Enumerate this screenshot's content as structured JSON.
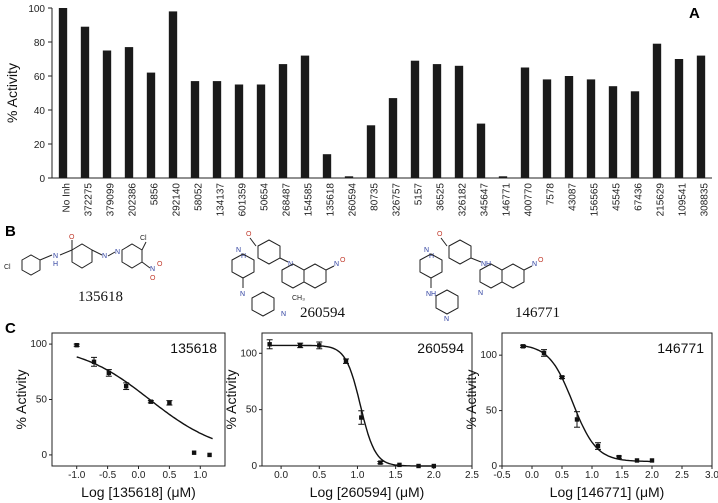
{
  "panel_letters": {
    "a": "A",
    "b": "B",
    "c": "C"
  },
  "chart_data": [
    {
      "type": "bar",
      "ylabel": "% Activity",
      "ylim": [
        0,
        100
      ],
      "yticks": [
        0,
        20,
        40,
        60,
        80,
        100
      ],
      "bar_color": "#1a1a1a",
      "categories": [
        "No Inh",
        "372275",
        "379099",
        "202386",
        "5856",
        "292140",
        "58052",
        "134137",
        "601359",
        "50654",
        "268487",
        "154585",
        "135618",
        "260594",
        "80735",
        "326757",
        "5157",
        "36525",
        "326182",
        "345647",
        "146771",
        "400770",
        "7578",
        "43087",
        "156565",
        "45545",
        "67436",
        "215629",
        "109541",
        "308835"
      ],
      "values": [
        100,
        89,
        75,
        77,
        62,
        98,
        57,
        57,
        55,
        55,
        67,
        72,
        14,
        1,
        31,
        47,
        69,
        67,
        66,
        32,
        1,
        65,
        58,
        60,
        58,
        54,
        51,
        79,
        70,
        72
      ]
    },
    {
      "type": "scatter",
      "compound": "135618",
      "xlabel": "Log [135618] (μM)",
      "ylabel": "% Activity",
      "xlim": [
        -1.4,
        1.4
      ],
      "ylim": [
        -10,
        110
      ],
      "xticks": [
        -1,
        -0.5,
        0,
        0.5,
        1
      ],
      "yticks": [
        0,
        50,
        100
      ],
      "points": [
        {
          "x": -1.0,
          "y": 99,
          "err": 1
        },
        {
          "x": -0.72,
          "y": 84,
          "err": 4
        },
        {
          "x": -0.48,
          "y": 74,
          "err": 3
        },
        {
          "x": -0.2,
          "y": 62,
          "err": 3
        },
        {
          "x": 0.2,
          "y": 48,
          "err": 1
        },
        {
          "x": 0.5,
          "y": 47,
          "err": 2
        },
        {
          "x": 0.9,
          "y": 2,
          "err": 0
        },
        {
          "x": 1.15,
          "y": 0,
          "err": 0
        }
      ],
      "fit": {
        "top": 100,
        "bottom": 0,
        "logIC50": 0.18,
        "hill": 0.75,
        "x_from": -1.0,
        "x_to": 1.2
      }
    },
    {
      "type": "scatter",
      "compound": "260594",
      "xlabel": "Log [260594] (μM)",
      "ylabel": "% Activity",
      "xlim": [
        -0.25,
        2.5
      ],
      "ylim": [
        0,
        118
      ],
      "xticks": [
        0.0,
        0.5,
        1.0,
        1.5,
        2.0,
        2.5
      ],
      "yticks": [
        0,
        50,
        100
      ],
      "points": [
        {
          "x": -0.15,
          "y": 108,
          "err": 4
        },
        {
          "x": 0.25,
          "y": 107,
          "err": 2
        },
        {
          "x": 0.5,
          "y": 107,
          "err": 3
        },
        {
          "x": 0.85,
          "y": 93,
          "err": 2
        },
        {
          "x": 1.05,
          "y": 43,
          "err": 6
        },
        {
          "x": 1.3,
          "y": 3,
          "err": 1
        },
        {
          "x": 1.55,
          "y": 1,
          "err": 0
        },
        {
          "x": 1.8,
          "y": 0,
          "err": 0
        },
        {
          "x": 2.0,
          "y": 0,
          "err": 0
        }
      ],
      "fit": {
        "top": 107,
        "bottom": 0,
        "logIC50": 1.04,
        "hill": 4.5,
        "x_from": -0.15,
        "x_to": 2.0
      }
    },
    {
      "type": "scatter",
      "compound": "146771",
      "xlabel": "Log [146771] (μM)",
      "ylabel": "% Activity",
      "xlim": [
        -0.5,
        3.0
      ],
      "ylim": [
        0,
        120
      ],
      "xticks": [
        -0.5,
        0.0,
        0.5,
        1.0,
        1.5,
        2.0,
        2.5,
        3.0
      ],
      "yticks": [
        0,
        50,
        100
      ],
      "points": [
        {
          "x": -0.15,
          "y": 108,
          "err": 1
        },
        {
          "x": 0.2,
          "y": 102,
          "err": 3
        },
        {
          "x": 0.5,
          "y": 80,
          "err": 1
        },
        {
          "x": 0.75,
          "y": 42,
          "err": 7
        },
        {
          "x": 1.1,
          "y": 18,
          "err": 3
        },
        {
          "x": 1.45,
          "y": 8,
          "err": 1
        },
        {
          "x": 1.75,
          "y": 5,
          "err": 0
        },
        {
          "x": 2.0,
          "y": 5,
          "err": 0
        }
      ],
      "fit": {
        "top": 110,
        "bottom": 4,
        "logIC50": 0.68,
        "hill": 2.2,
        "x_from": -0.15,
        "x_to": 2.0
      }
    }
  ],
  "compounds": [
    {
      "id": "135618",
      "atoms": {
        "n1": "N",
        "h1": "H",
        "o1": "O",
        "cl1": "Cl",
        "cl2": "Cl",
        "n2": "N",
        "n3": "N",
        "no2": "N",
        "o2": "O",
        "o3": "O"
      }
    },
    {
      "id": "260594",
      "atoms": {
        "n1": "N",
        "h1": "H",
        "o1": "O",
        "n2": "N",
        "n3": "N",
        "n4": "N",
        "ch3": "CH₃",
        "no2": "N",
        "o2": "O"
      }
    },
    {
      "id": "146771",
      "atoms": {
        "n1": "N",
        "h1": "H",
        "o1": "O",
        "n2": "NH",
        "n3": "N",
        "n4": "N",
        "n5": "NH",
        "no2": "N",
        "o2": "O"
      }
    }
  ]
}
